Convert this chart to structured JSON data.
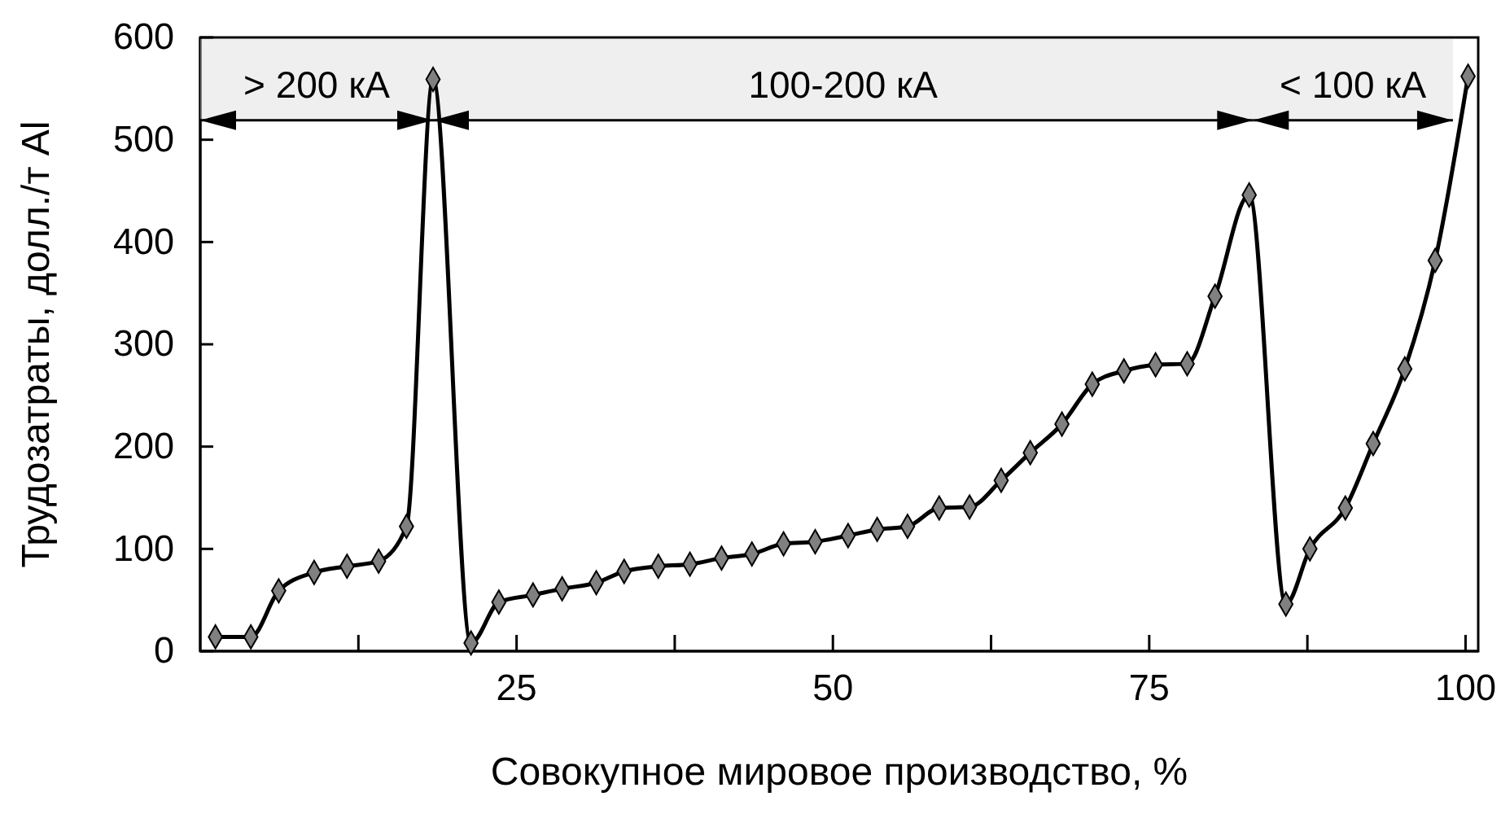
{
  "chart_data": {
    "type": "line",
    "xlabel": "Совокупное мировое производство, %",
    "ylabel": "Трудозатраты, долл./т Al",
    "xlim": [
      0,
      101
    ],
    "ylim": [
      0,
      600
    ],
    "xticks": [
      {
        "value": 12.5,
        "label": null
      },
      25,
      {
        "value": 37.5,
        "label": null
      },
      50,
      {
        "value": 62.5,
        "label": null
      },
      75,
      {
        "value": 87.5,
        "label": null
      },
      100
    ],
    "yticks": [
      0,
      100,
      200,
      300,
      400,
      500,
      600
    ],
    "marker": "diamond",
    "line_style": "solid",
    "grid": false,
    "bands": [
      {
        "axis": "x",
        "from": 0,
        "to": 18.4,
        "label": "> 200 кА"
      },
      {
        "axis": "x",
        "from": 18.4,
        "to": 83.2,
        "label": "100-200 кА"
      },
      {
        "axis": "x",
        "from": 83.2,
        "to": 99,
        "label": "< 100 кА"
      }
    ],
    "series": [
      {
        "color": "#000000",
        "x": [
          1.2,
          4.0,
          6.2,
          9.0,
          11.6,
          14.1,
          16.3,
          18.4,
          21.4,
          23.6,
          26.3,
          28.6,
          31.3,
          33.5,
          36.2,
          38.7,
          41.2,
          43.6,
          46.1,
          48.6,
          51.2,
          53.5,
          55.9,
          58.4,
          60.8,
          63.3,
          65.6,
          68.1,
          70.5,
          73.0,
          75.5,
          78.0,
          80.2,
          82.9,
          85.8,
          87.7,
          90.5,
          92.7,
          95.2,
          97.6,
          100.2
        ],
        "values": [
          14,
          14,
          59,
          77,
          83,
          88,
          122,
          559,
          8,
          48,
          55,
          61,
          67,
          78,
          83,
          85,
          91,
          95,
          105,
          107,
          113,
          119,
          122,
          140,
          141,
          167,
          194,
          222,
          261,
          274,
          280,
          281,
          347,
          446,
          46,
          100,
          140,
          203,
          276,
          382,
          562
        ]
      }
    ]
  }
}
